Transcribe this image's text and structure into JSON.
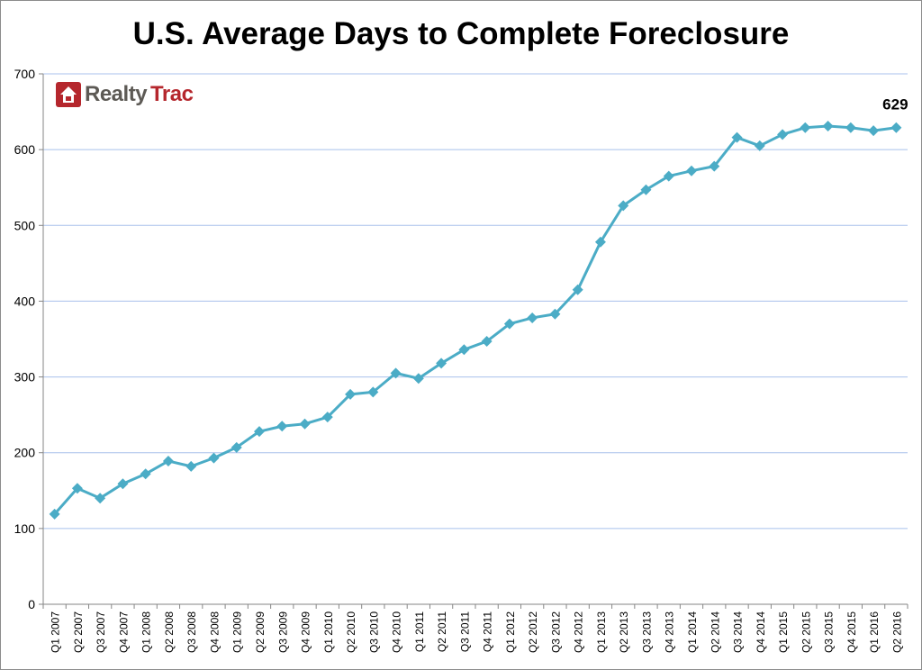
{
  "chart_data": {
    "type": "line",
    "title": "U.S. Average Days to Complete Foreclosure",
    "xlabel": "",
    "ylabel": "",
    "ylim": [
      0,
      700
    ],
    "yticks": [
      0,
      100,
      200,
      300,
      400,
      500,
      600,
      700
    ],
    "grid": true,
    "line_color": "#4bacc6",
    "grid_color": "#a8c0ec",
    "marker": "diamond",
    "categories": [
      "Q1 2007",
      "Q2 2007",
      "Q3 2007",
      "Q4 2007",
      "Q1 2008",
      "Q2 2008",
      "Q3 2008",
      "Q4 2008",
      "Q1 2009",
      "Q2 2009",
      "Q3 2009",
      "Q4 2009",
      "Q1 2010",
      "Q2 2010",
      "Q3 2010",
      "Q4 2010",
      "Q1 2011",
      "Q2 2011",
      "Q3 2011",
      "Q4 2011",
      "Q1 2012",
      "Q2 2012",
      "Q3 2012",
      "Q4 2012",
      "Q1 2013",
      "Q2 2013",
      "Q3 2013",
      "Q4 2013",
      "Q1 2014",
      "Q2 2014",
      "Q3 2014",
      "Q4 2014",
      "Q1 2015",
      "Q2 2015",
      "Q3 2015",
      "Q4 2015",
      "Q1 2016",
      "Q2 2016"
    ],
    "values": [
      119,
      153,
      140,
      159,
      172,
      189,
      182,
      193,
      207,
      228,
      235,
      238,
      247,
      277,
      280,
      305,
      298,
      318,
      336,
      347,
      370,
      378,
      383,
      415,
      478,
      526,
      547,
      565,
      572,
      578,
      616,
      605,
      620,
      629,
      631,
      629,
      625,
      629
    ],
    "annotations": [
      {
        "category": "Q2 2016",
        "text": "629"
      }
    ]
  },
  "logo": {
    "part1": "Realty",
    "part2": "Trac",
    "icon": "house-icon"
  }
}
